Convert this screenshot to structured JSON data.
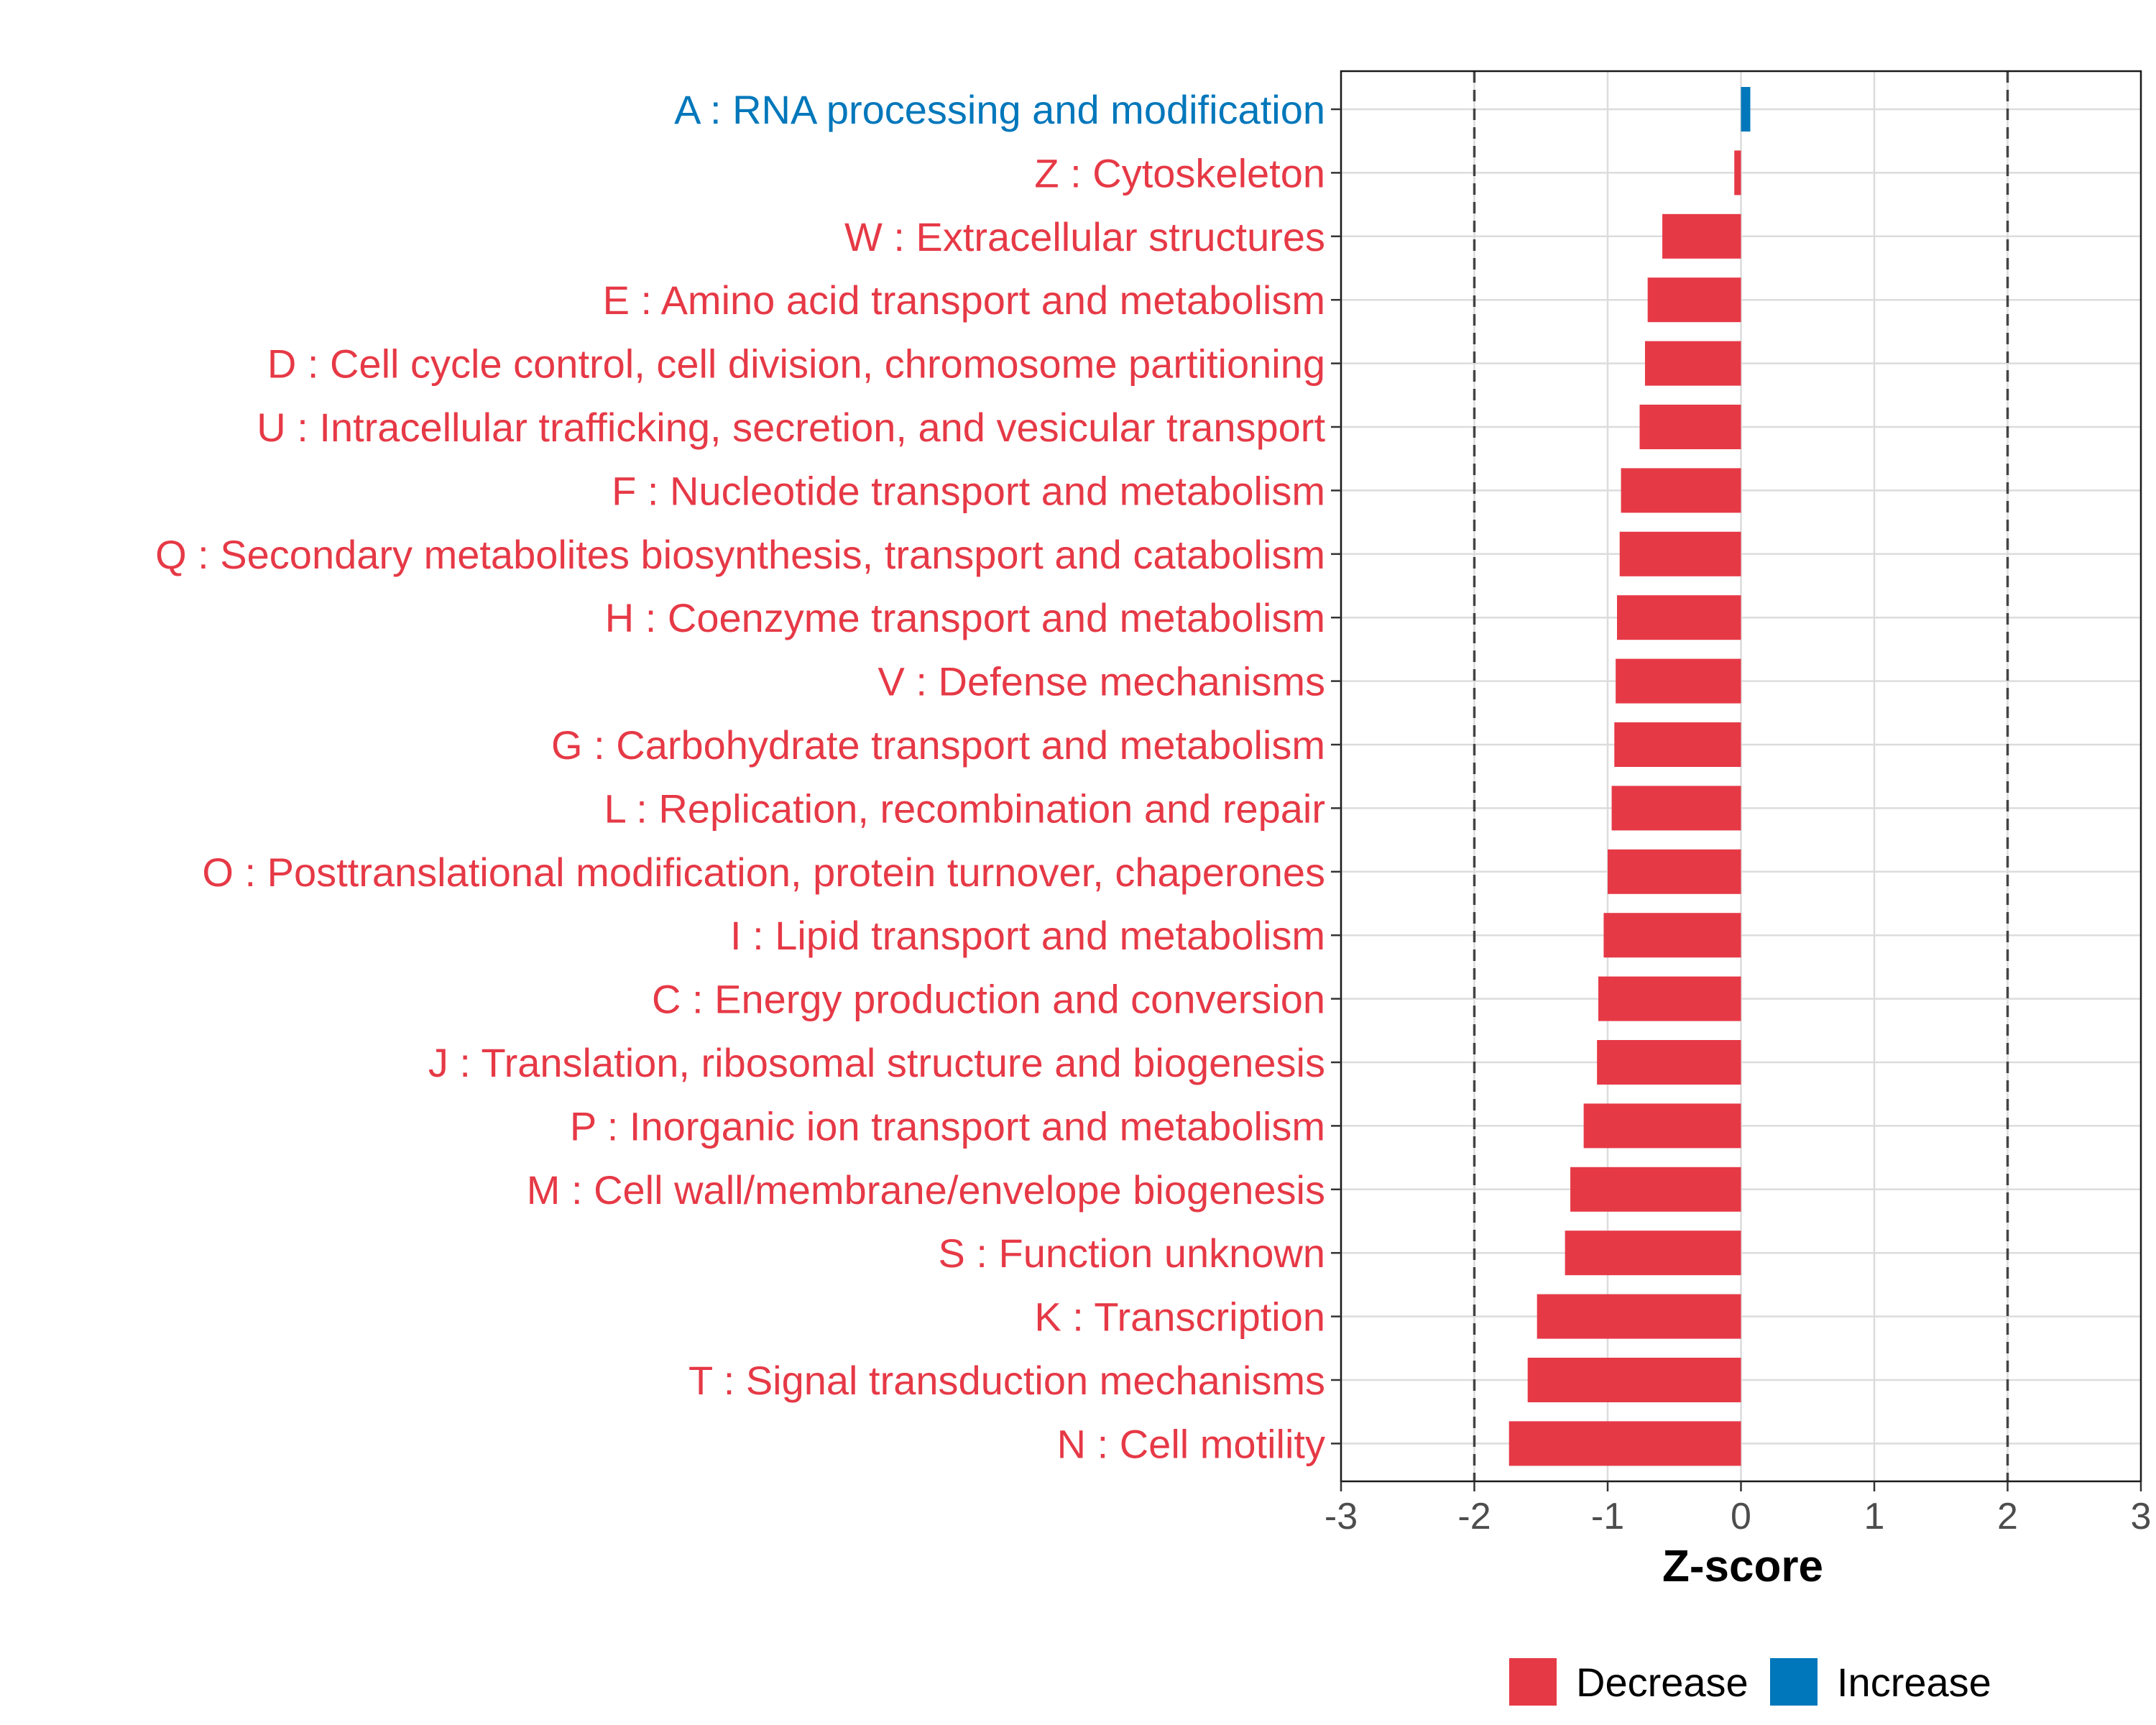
{
  "chart_data": {
    "type": "bar",
    "orientation": "horizontal",
    "title": "",
    "xlabel": "Z-score",
    "ylabel": "",
    "xlim": [
      -3,
      3
    ],
    "xticks": [
      -3,
      -2,
      -1,
      0,
      1,
      2,
      3
    ],
    "reference_lines": [
      -2,
      2
    ],
    "grid": true,
    "legend_position": "bottom",
    "colors": {
      "Decrease": "#E63946",
      "Increase": "#0077BB"
    },
    "legend": [
      "Decrease",
      "Increase"
    ],
    "categories": [
      "A : RNA processing and modification",
      "Z : Cytoskeleton",
      "W : Extracellular structures",
      "E : Amino acid transport and metabolism",
      "D : Cell cycle control, cell division, chromosome partitioning",
      "U : Intracellular trafficking, secretion, and vesicular transport",
      "F : Nucleotide transport and metabolism",
      "Q : Secondary metabolites biosynthesis, transport and catabolism",
      "H : Coenzyme transport and metabolism",
      "V : Defense mechanisms",
      "G : Carbohydrate transport and metabolism",
      "L : Replication, recombination and repair",
      "O : Posttranslational modification, protein turnover, chaperones",
      "I : Lipid transport and metabolism",
      "C : Energy production and conversion",
      "J : Translation, ribosomal structure and biogenesis",
      "P : Inorganic ion transport and metabolism",
      "M : Cell wall/membrane/envelope biogenesis",
      "S : Function unknown",
      "K : Transcription",
      "T : Signal transduction mechanisms",
      "N : Cell motility"
    ],
    "values": [
      0.07,
      -0.05,
      -0.59,
      -0.7,
      -0.72,
      -0.76,
      -0.9,
      -0.91,
      -0.93,
      -0.94,
      -0.95,
      -0.97,
      -1.0,
      -1.03,
      -1.07,
      -1.08,
      -1.18,
      -1.28,
      -1.32,
      -1.53,
      -1.6,
      -1.74
    ],
    "groups": [
      "Increase",
      "Decrease",
      "Decrease",
      "Decrease",
      "Decrease",
      "Decrease",
      "Decrease",
      "Decrease",
      "Decrease",
      "Decrease",
      "Decrease",
      "Decrease",
      "Decrease",
      "Decrease",
      "Decrease",
      "Decrease",
      "Decrease",
      "Decrease",
      "Decrease",
      "Decrease",
      "Decrease",
      "Decrease"
    ]
  }
}
